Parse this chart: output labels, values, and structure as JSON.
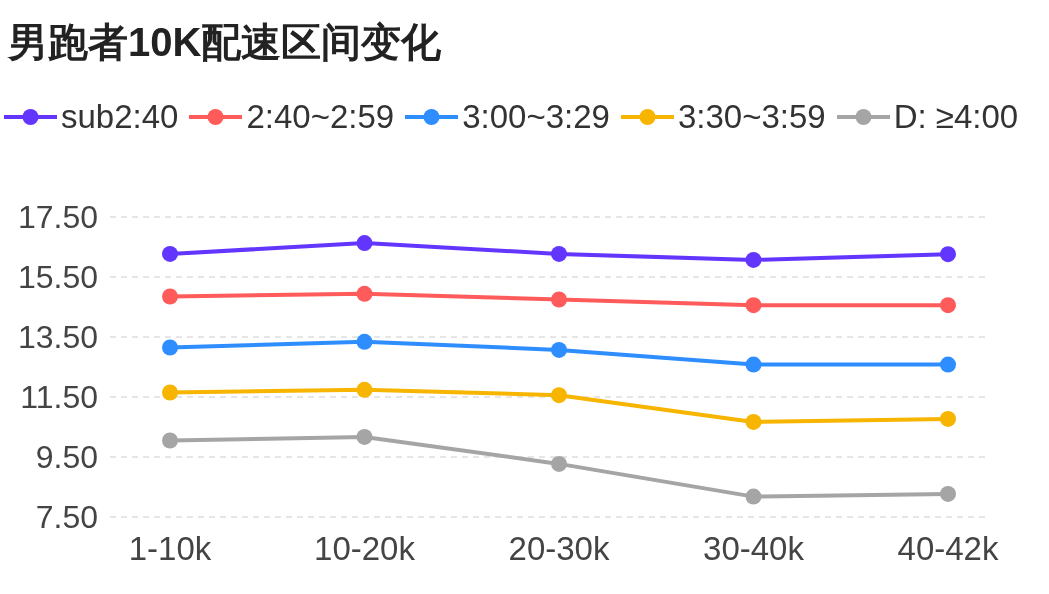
{
  "chart_data": {
    "type": "line",
    "title": "男跑者10K配速区间变化",
    "categories": [
      "1-10k",
      "10-20k",
      "20-30k",
      "30-40k",
      "40-42k"
    ],
    "series": [
      {
        "name": "sub2:40",
        "color": "#6236ff",
        "values": [
          16.27,
          16.63,
          16.27,
          16.07,
          16.26
        ]
      },
      {
        "name": "2:40~2:59",
        "color": "#ff5b5b",
        "values": [
          14.85,
          14.94,
          14.75,
          14.56,
          14.56
        ]
      },
      {
        "name": "3:00~3:29",
        "color": "#2e8dff",
        "values": [
          13.15,
          13.34,
          13.07,
          12.58,
          12.58
        ]
      },
      {
        "name": "3:30~3:59",
        "color": "#f7b500",
        "values": [
          11.65,
          11.74,
          11.56,
          10.67,
          10.77
        ]
      },
      {
        "name": "D: ≥4:00",
        "color": "#a5a5a5",
        "values": [
          10.05,
          10.17,
          9.27,
          8.18,
          8.27
        ]
      }
    ],
    "ylim": [
      7.5,
      17.5
    ],
    "yticks": [
      {
        "value": 7.5,
        "label": "7.50"
      },
      {
        "value": 9.5,
        "label": "9.50"
      },
      {
        "value": 11.5,
        "label": "11.50"
      },
      {
        "value": 13.5,
        "label": "13.50"
      },
      {
        "value": 15.5,
        "label": "15.50"
      },
      {
        "value": 17.5,
        "label": "17.50"
      }
    ],
    "grid": "y",
    "legend": "top",
    "marker": "circle",
    "line_style": "solid"
  }
}
